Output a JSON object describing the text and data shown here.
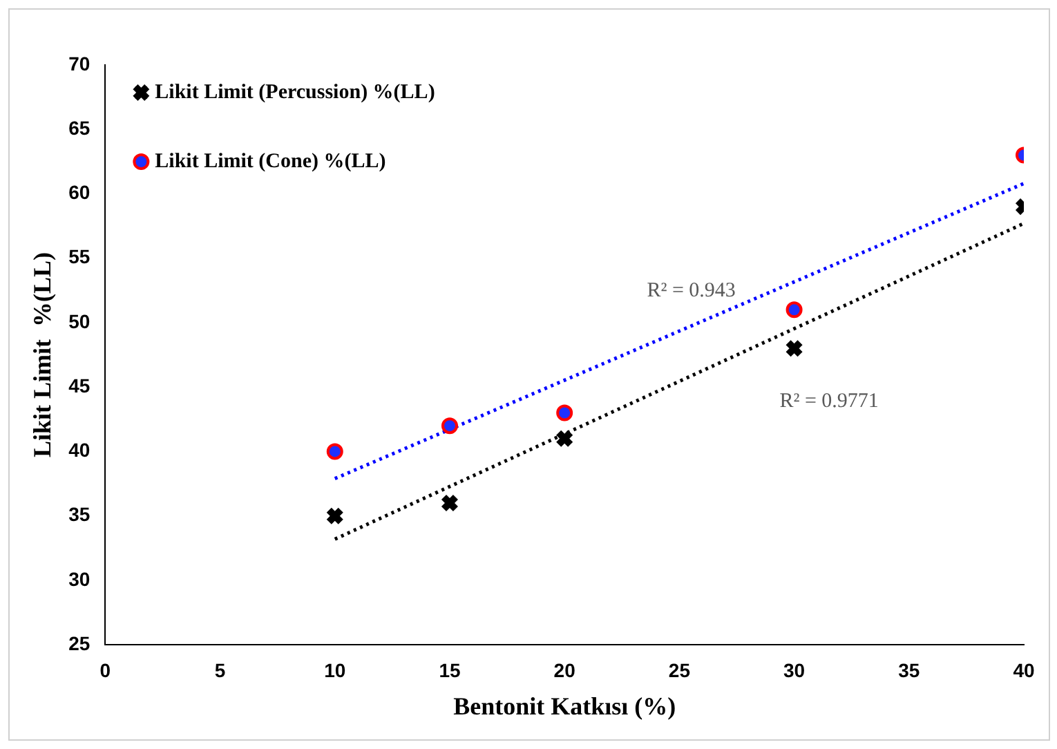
{
  "chart_data": {
    "type": "scatter",
    "xlabel": "Bentonit Katkısı (%)",
    "ylabel": "Likit Limit  %(LL)",
    "series": [
      {
        "name": "Likit Limit (Percussion) %(LL)",
        "color": "#000000",
        "marker": "cross",
        "x": [
          10,
          15,
          20,
          30,
          40
        ],
        "values": [
          35,
          36,
          41,
          48,
          59
        ]
      },
      {
        "name": "Likit Limit (Cone) %(LL)",
        "color": "#ff0000",
        "marker": "circle",
        "x": [
          10,
          15,
          20,
          30,
          40
        ],
        "values": [
          40,
          42,
          43,
          51,
          63
        ]
      },
      {
        "type": "line",
        "color": "#000000",
        "line_style": "dotted",
        "marker": "none",
        "x": [
          10,
          40
        ],
        "values": [
          33.2,
          57.7
        ]
      },
      {
        "type": "line",
        "color": "#0000ff",
        "line_style": "dotted",
        "marker": "none",
        "x": [
          10,
          40
        ],
        "values": [
          37.9,
          60.8
        ]
      }
    ],
    "annotations": [
      "R² = 0.943",
      "R² = 0.9771"
    ],
    "xlim": [
      0,
      40
    ],
    "xticks": [
      0,
      5,
      10,
      15,
      20,
      25,
      30,
      35,
      40
    ],
    "ylim": [
      25,
      70
    ],
    "yticks": [
      25,
      30,
      35,
      40,
      45,
      50,
      55,
      60,
      65,
      70
    ],
    "grid": false,
    "legend": "top left"
  }
}
